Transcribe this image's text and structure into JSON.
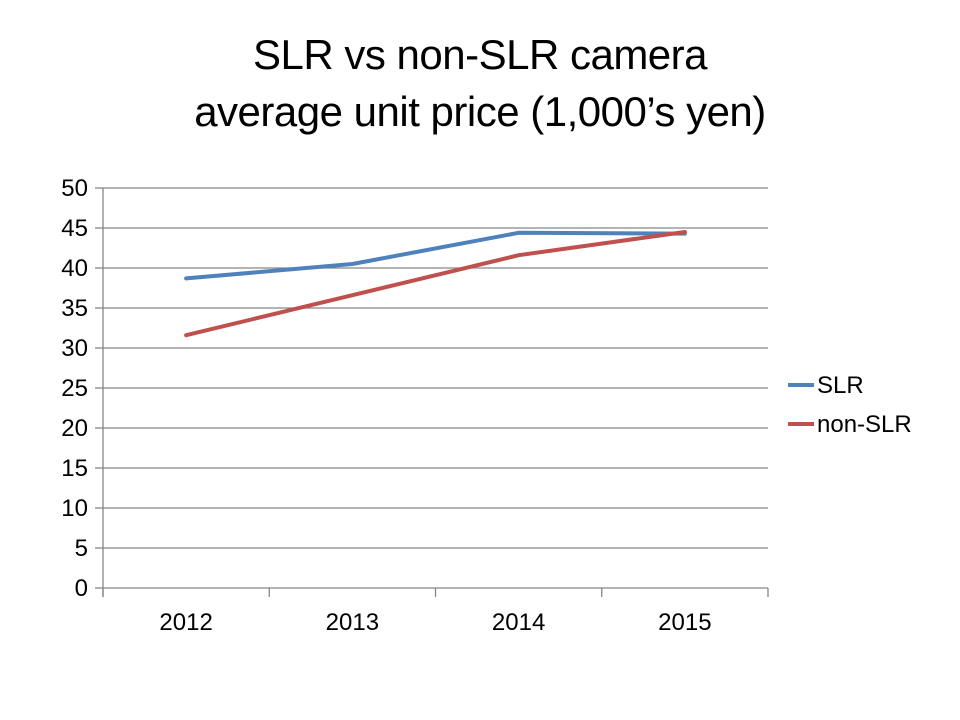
{
  "chart_data": {
    "type": "line",
    "title": "SLR vs non-SLR camera average unit price (1,000’s yen)",
    "title_lines": [
      "SLR vs non-SLR camera",
      "average unit price (1,000’s yen)"
    ],
    "categories": [
      "2012",
      "2013",
      "2014",
      "2015"
    ],
    "series": [
      {
        "name": "SLR",
        "color": "#4F81BD",
        "values": [
          38.7,
          40.5,
          44.4,
          44.3
        ]
      },
      {
        "name": "non-SLR",
        "color": "#C0504D",
        "values": [
          31.6,
          36.6,
          41.6,
          44.5
        ]
      }
    ],
    "ylim": [
      0,
      50
    ],
    "ytick_step": 5,
    "xlabel": "",
    "ylabel": "",
    "grid": true,
    "legend_position": "right",
    "colors": {
      "gridline": "#878787",
      "axis": "#878787",
      "text": "#000000",
      "background": "#ffffff"
    }
  }
}
